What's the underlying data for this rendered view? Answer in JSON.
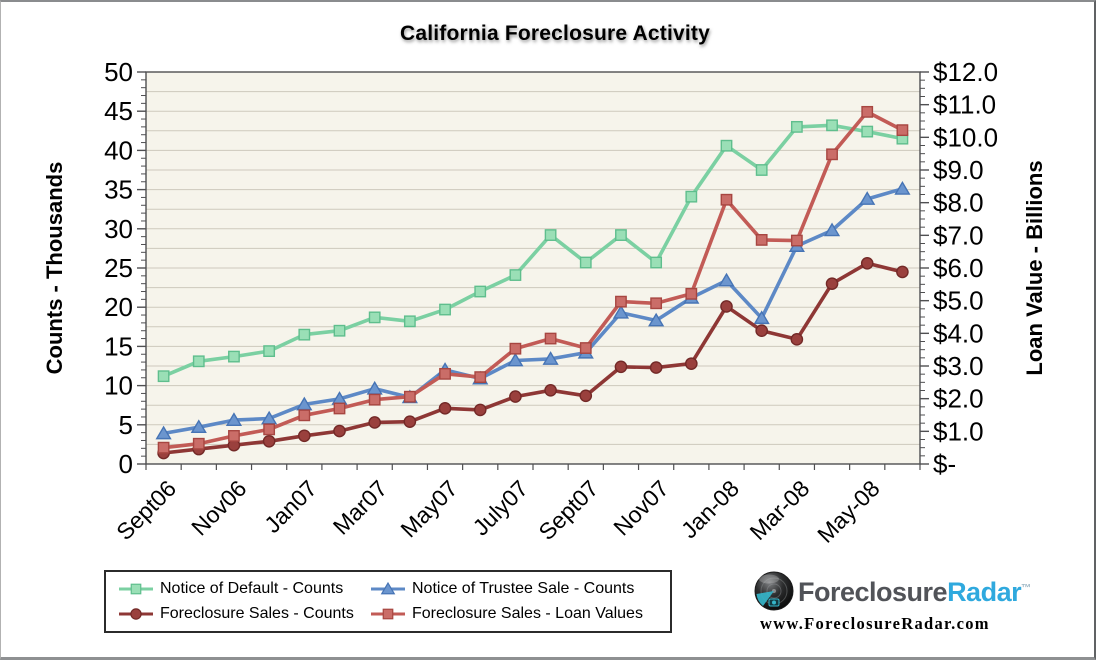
{
  "chart_data": {
    "type": "line",
    "title": "California Foreclosure Activity",
    "n_points": 22,
    "months": [
      "Sep-06",
      "Oct-06",
      "Nov-06",
      "Dec-06",
      "Jan-07",
      "Feb-07",
      "Mar-07",
      "Apr-07",
      "May-07",
      "Jun-07",
      "Jul-07",
      "Aug-07",
      "Sep-07",
      "Oct-07",
      "Nov-07",
      "Dec-07",
      "Jan-08",
      "Feb-08",
      "Mar-08",
      "Apr-08",
      "May-08",
      "Jun-08"
    ],
    "x_tick_labels": [
      "Sept06",
      "Nov06",
      "Jan07",
      "Mar07",
      "May07",
      "July07",
      "Sept07",
      "Nov07",
      "Jan-08",
      "Mar-08",
      "May-08"
    ],
    "x_label_interval": 2,
    "left_axis": {
      "title": "Counts - Thousands",
      "min": 0,
      "max": 50,
      "major": 5,
      "grid_interval": 2.5,
      "tick_labels": [
        "50",
        "45",
        "40",
        "35",
        "30",
        "25",
        "20",
        "15",
        "10",
        "5",
        "0"
      ]
    },
    "right_axis": {
      "title": "Loan Value - Billions",
      "min": 0,
      "max": 12,
      "major": 1,
      "minor": 0.25,
      "tick_labels": [
        "$12.0",
        "$11.0",
        "$10.0",
        "$9.0",
        "$8.0",
        "$7.0",
        "$6.0",
        "$5.0",
        "$4.0",
        "$3.0",
        "$2.0",
        "$1.0",
        "$-"
      ]
    },
    "legend_position": "bottom-left",
    "grid": true,
    "plot_bg": "#f6f4eb",
    "grid_color": "#cdc9bd",
    "axis_color": "#4f4f51",
    "series": [
      {
        "name": "Notice of Default - Counts",
        "axis": "left",
        "marker": "square",
        "color": "#7bd0a2",
        "marker_fill": "#9adfb6",
        "marker_stroke": "#5fbe8d",
        "values": [
          11.2,
          13.1,
          13.7,
          14.4,
          16.5,
          17.0,
          18.7,
          18.2,
          19.7,
          22.0,
          24.1,
          29.2,
          25.7,
          29.2,
          25.7,
          34.1,
          40.6,
          37.5,
          43.0,
          43.2,
          42.4,
          41.5
        ]
      },
      {
        "name": "Notice of Trustee Sale - Counts",
        "axis": "left",
        "marker": "triangle",
        "color": "#5d89c6",
        "marker_fill": "#6b95ce",
        "marker_stroke": "#4674b5",
        "values": [
          3.9,
          4.7,
          5.6,
          5.8,
          7.6,
          8.3,
          9.6,
          8.5,
          12.0,
          10.9,
          13.2,
          13.4,
          14.2,
          19.3,
          18.3,
          21.2,
          23.4,
          18.6,
          27.8,
          29.8,
          33.8,
          35.1
        ]
      },
      {
        "name": "Foreclosure Sales - Counts",
        "axis": "left",
        "marker": "circle",
        "color": "#8e3735",
        "marker_fill": "#9a403d",
        "marker_stroke": "#732927",
        "values": [
          1.4,
          1.9,
          2.4,
          2.9,
          3.6,
          4.2,
          5.3,
          5.4,
          7.1,
          6.9,
          8.6,
          9.4,
          8.7,
          12.4,
          12.3,
          12.8,
          20.1,
          17.0,
          15.9,
          23.0,
          25.6,
          24.5
        ]
      },
      {
        "name": "Foreclosure Sales - Loan Values",
        "axis": "right",
        "marker": "square",
        "color": "#c25b56",
        "marker_fill": "#ca6d68",
        "marker_stroke": "#a74641",
        "values": [
          0.5,
          0.62,
          0.86,
          1.06,
          1.49,
          1.7,
          1.97,
          2.06,
          2.76,
          2.66,
          3.53,
          3.84,
          3.55,
          4.97,
          4.92,
          5.21,
          8.09,
          6.86,
          6.84,
          9.48,
          10.78,
          10.22
        ]
      }
    ]
  },
  "branding": {
    "brand_part1": "Foreclosure",
    "brand_part2": "Radar",
    "trademark": "TM",
    "url": "www.ForeclosureRadar.com"
  }
}
